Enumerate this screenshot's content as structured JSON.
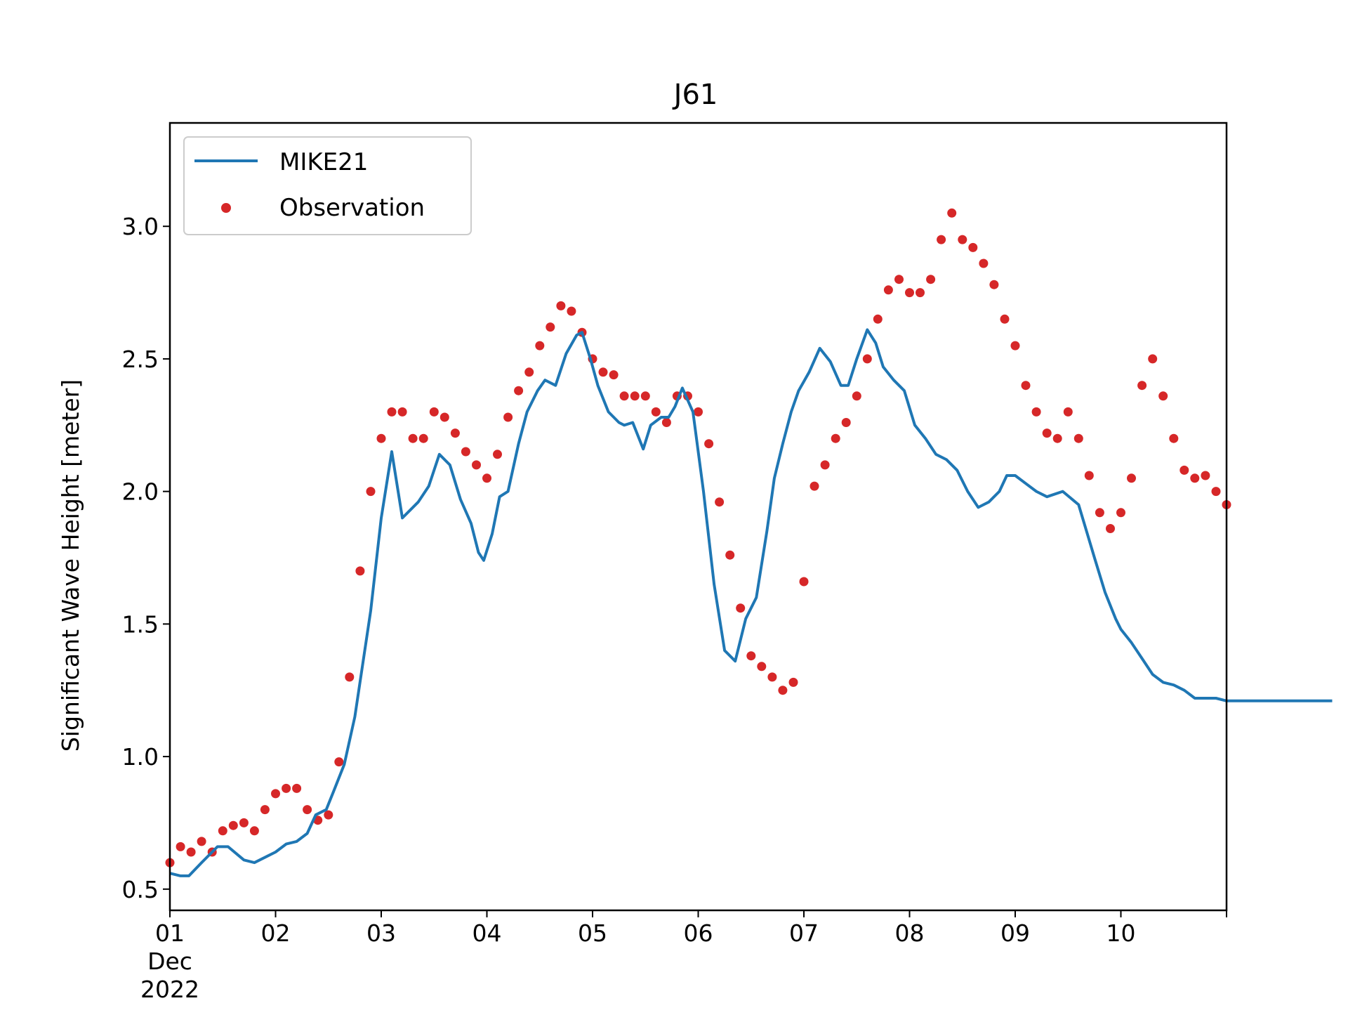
{
  "chart_data": {
    "type": "scatter",
    "title": "J61",
    "xlabel": "",
    "ylabel": "Significant Wave Height [meter]",
    "x_axis": {
      "type": "date",
      "range": [
        "2022-12-01",
        "2022-12-11"
      ],
      "tick_labels": [
        "01",
        "02",
        "03",
        "04",
        "05",
        "06",
        "07",
        "08",
        "09",
        "10"
      ],
      "first_tick_sublabels": [
        "Dec",
        "2022"
      ]
    },
    "ylim": [
      0.42,
      3.39
    ],
    "y_ticks": [
      "0.5",
      "1.0",
      "1.5",
      "2.0",
      "2.5",
      "3.0"
    ],
    "legend": {
      "placement": "top-left"
    },
    "series": [
      {
        "name": "MIKE21",
        "kind": "line",
        "color": "#1f77b4",
        "x_day_offset": [
          0,
          0.1,
          0.18,
          0.3,
          0.45,
          0.55,
          0.7,
          0.8,
          1.0,
          1.1,
          1.2,
          1.3,
          1.38,
          1.48,
          1.55,
          1.65,
          1.75,
          1.9,
          2.0,
          2.1,
          2.2,
          2.35,
          2.45,
          2.55,
          2.65,
          2.75,
          2.85,
          2.92,
          2.97,
          3.05,
          3.12,
          3.2,
          3.3,
          3.38,
          3.48,
          3.55,
          3.65,
          3.75,
          3.85,
          3.9,
          3.98,
          4.05,
          4.15,
          4.25,
          4.3,
          4.38,
          4.48,
          4.55,
          4.65,
          4.72,
          4.78,
          4.85,
          4.95,
          5.05,
          5.15,
          5.25,
          5.35,
          5.45,
          5.55,
          5.65,
          5.72,
          5.8,
          5.88,
          5.95,
          6.05,
          6.15,
          6.25,
          6.35,
          6.42,
          6.5,
          6.6,
          6.68,
          6.75,
          6.85,
          6.95,
          7.05,
          7.15,
          7.25,
          7.35,
          7.45,
          7.55,
          7.65,
          7.75,
          7.85,
          7.92,
          8.0,
          8.1,
          8.2,
          8.3,
          8.45,
          8.6,
          8.75,
          8.85,
          8.95,
          9.0,
          9.1,
          9.2,
          9.3,
          9.4,
          9.5,
          9.6,
          9.7,
          9.8,
          9.9,
          10.0,
          10.1,
          10.2,
          10.35,
          10.5,
          10.6,
          10.75,
          10.9,
          11.0
        ],
        "y": [
          0.56,
          0.55,
          0.55,
          0.6,
          0.66,
          0.66,
          0.61,
          0.6,
          0.64,
          0.67,
          0.68,
          0.71,
          0.78,
          0.8,
          0.87,
          0.97,
          1.15,
          1.55,
          1.9,
          2.15,
          1.9,
          1.96,
          2.02,
          2.14,
          2.1,
          1.97,
          1.88,
          1.77,
          1.74,
          1.84,
          1.98,
          2.0,
          2.18,
          2.3,
          2.38,
          2.42,
          2.4,
          2.52,
          2.59,
          2.6,
          2.5,
          2.4,
          2.3,
          2.26,
          2.25,
          2.26,
          2.16,
          2.25,
          2.28,
          2.28,
          2.32,
          2.39,
          2.3,
          2.0,
          1.65,
          1.4,
          1.36,
          1.52,
          1.6,
          1.85,
          2.05,
          2.18,
          2.3,
          2.38,
          2.45,
          2.54,
          2.49,
          2.4,
          2.4,
          2.5,
          2.61,
          2.56,
          2.47,
          2.42,
          2.38,
          2.25,
          2.2,
          2.14,
          2.12,
          2.08,
          2.0,
          1.94,
          1.96,
          2.0,
          2.06,
          2.06,
          2.03,
          2.0,
          1.98,
          2.0,
          1.95,
          1.75,
          1.62,
          1.52,
          1.48,
          1.43,
          1.37,
          1.31,
          1.28,
          1.27,
          1.25,
          1.22,
          1.22,
          1.22,
          1.21,
          1.21,
          1.21,
          1.21,
          1.21,
          1.21,
          1.21,
          1.21,
          1.21
        ],
        "note_removed": true
      },
      {
        "name": "Observation",
        "kind": "scatter",
        "color": "#d62728",
        "x_day_offset": [
          0,
          0.1,
          0.2,
          0.3,
          0.4,
          0.5,
          0.6,
          0.7,
          0.8,
          0.9,
          1.0,
          1.1,
          1.2,
          1.3,
          1.4,
          1.5,
          1.6,
          1.7,
          1.8,
          1.9,
          2.0,
          2.1,
          2.2,
          2.3,
          2.4,
          2.5,
          2.6,
          2.7,
          2.8,
          2.9,
          3.0,
          3.1,
          3.2,
          3.3,
          3.4,
          3.5,
          3.6,
          3.7,
          3.8,
          3.9,
          4.0,
          4.1,
          4.2,
          4.3,
          4.4,
          4.5,
          4.6,
          4.7,
          4.8,
          4.9,
          5.0,
          5.1,
          5.2,
          5.3,
          5.4,
          5.5,
          5.6,
          5.7,
          5.8,
          5.9,
          6.0,
          6.1,
          6.2,
          6.3,
          6.4,
          6.5,
          6.6,
          6.7,
          6.8,
          6.9,
          7.0,
          7.1,
          7.2,
          7.3,
          7.4,
          7.5,
          7.6,
          7.7,
          7.8,
          7.9,
          8.0,
          8.1,
          8.2,
          8.3,
          8.4,
          8.5,
          8.6,
          8.7,
          8.8,
          8.9,
          9.0,
          9.1,
          9.2,
          9.3,
          9.4,
          9.5,
          9.6,
          9.7,
          9.8,
          9.9,
          10.0
        ],
        "y": [
          0.6,
          0.66,
          0.64,
          0.68,
          0.64,
          0.72,
          0.74,
          0.75,
          0.72,
          0.8,
          0.86,
          0.88,
          0.88,
          0.8,
          0.76,
          0.78,
          0.98,
          1.3,
          1.7,
          2.0,
          2.2,
          2.3,
          2.3,
          2.2,
          2.2,
          2.3,
          2.28,
          2.22,
          2.15,
          2.1,
          2.05,
          2.14,
          2.28,
          2.38,
          2.45,
          2.55,
          2.62,
          2.7,
          2.68,
          2.6,
          2.5,
          2.45,
          2.44,
          2.36,
          2.36,
          2.36,
          2.3,
          2.26,
          2.36,
          2.36,
          2.3,
          2.18,
          1.96,
          1.76,
          1.56,
          1.38,
          1.34,
          1.3,
          1.25,
          1.28,
          1.66,
          2.02,
          2.1,
          2.2,
          2.26,
          2.36,
          2.5,
          2.65,
          2.76,
          2.8,
          2.75,
          2.75,
          2.8,
          2.95,
          3.05,
          2.95,
          2.92,
          2.86,
          2.78,
          2.65,
          2.55,
          2.4,
          2.3,
          2.22,
          2.2,
          2.3,
          2.2,
          2.06,
          1.92,
          1.86,
          1.92,
          2.05,
          2.4,
          2.5,
          2.36,
          2.2,
          2.08,
          2.05,
          2.06,
          2.0,
          1.95
        ]
      }
    ]
  }
}
